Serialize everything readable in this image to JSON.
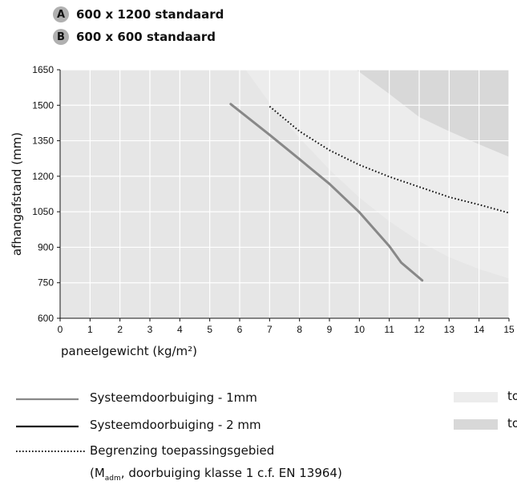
{
  "options": [
    {
      "key": "A",
      "label": "600 x 1200 standaard"
    },
    {
      "key": "B",
      "label": "600 x 600 standaard"
    }
  ],
  "chart_data": {
    "type": "line",
    "xlabel": "paneelgewicht (kg/m²)",
    "ylabel": "afhangafstand (mm)",
    "xlim": [
      0,
      15
    ],
    "ylim": [
      600,
      1650
    ],
    "xticks": [
      "0",
      "1",
      "2",
      "3",
      "4",
      "5",
      "6",
      "7",
      "8",
      "9",
      "10",
      "11",
      "12",
      "13",
      "14",
      "15"
    ],
    "yticks": [
      "600",
      "750",
      "900",
      "1050",
      "1200",
      "1350",
      "1500",
      "1650"
    ],
    "grid": true,
    "series": [
      {
        "name": "Systeemdoorbuiging - 1mm",
        "style": "solid",
        "color": "#888888",
        "x": [
          5.7,
          7,
          8,
          9,
          10,
          11,
          11.4,
          12.1
        ],
        "y": [
          1505,
          1375,
          1272,
          1168,
          1048,
          905,
          835,
          760
        ]
      },
      {
        "name": "Begrenzing toepassingsgebied",
        "style": "dotted",
        "color": "#111111",
        "x": [
          7,
          8,
          9,
          10,
          11,
          12,
          13,
          14,
          15
        ],
        "y": [
          1495,
          1390,
          1310,
          1248,
          1198,
          1155,
          1112,
          1080,
          1045
        ]
      }
    ],
    "regions": [
      {
        "name": "to",
        "color": "#ececec",
        "boundary_x": [
          6.2,
          7,
          8,
          9,
          10,
          11,
          12,
          13,
          14,
          15
        ],
        "boundary_y": [
          1650,
          1510,
          1362,
          1228,
          1110,
          1010,
          925,
          858,
          808,
          768
        ]
      },
      {
        "name": "to",
        "color": "#d8d8d8",
        "boundary_x": [
          9.9,
          11,
          12,
          13,
          14,
          15
        ],
        "boundary_y": [
          1650,
          1548,
          1450,
          1390,
          1335,
          1282
        ]
      }
    ]
  },
  "legend": [
    {
      "label": "Systeemdoorbuiging - 1mm",
      "style": "solid-grey"
    },
    {
      "label": "Systeemdoorbuiging - 2 mm",
      "style": "solid-black"
    },
    {
      "label": "Begrenzing toepassingsgebied",
      "style": "dotted"
    },
    {
      "label": "(M",
      "sub": "adm",
      "rest": ", doorbuiging klasse 1 c.f. EN 13964)"
    }
  ],
  "region_legend": [
    {
      "label": "to",
      "color": "#ececec"
    },
    {
      "label": "to",
      "color": "#d8d8d8"
    }
  ]
}
